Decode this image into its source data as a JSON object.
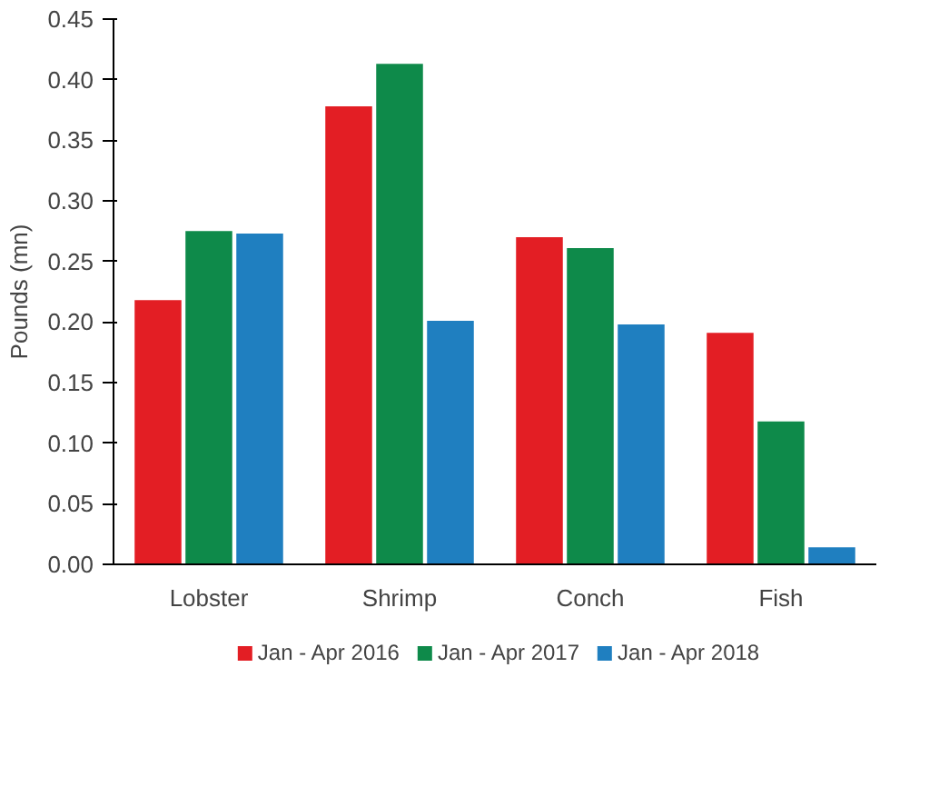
{
  "chart_data": {
    "type": "bar",
    "ylabel": "Pounds (mn)",
    "categories": [
      "Lobster",
      "Shrimp",
      "Conch",
      "Fish"
    ],
    "series": [
      {
        "name": "Jan - Apr 2016",
        "color": "#e31e24",
        "values": [
          0.218,
          0.378,
          0.27,
          0.191
        ]
      },
      {
        "name": "Jan - Apr 2017",
        "color": "#0e8a4a",
        "values": [
          0.275,
          0.413,
          0.261,
          0.118
        ]
      },
      {
        "name": "Jan - Apr 2018",
        "color": "#1f7fc0",
        "values": [
          0.273,
          0.201,
          0.198,
          0.014
        ]
      }
    ],
    "ylim": [
      0,
      0.45
    ],
    "yticks": [
      {
        "value": 0,
        "label": "0.00"
      },
      {
        "value": 0.05,
        "label": "0.05"
      },
      {
        "value": 0.1,
        "label": "0.10"
      },
      {
        "value": 0.15,
        "label": "0.15"
      },
      {
        "value": 0.2,
        "label": "0.20"
      },
      {
        "value": 0.25,
        "label": "0.25"
      },
      {
        "value": 0.3,
        "label": "0.30"
      },
      {
        "value": 0.35,
        "label": "0.35"
      },
      {
        "value": 0.4,
        "label": "0.40"
      },
      {
        "value": 0.45,
        "label": "0.45"
      }
    ],
    "grid": false,
    "legend": "bottom"
  }
}
